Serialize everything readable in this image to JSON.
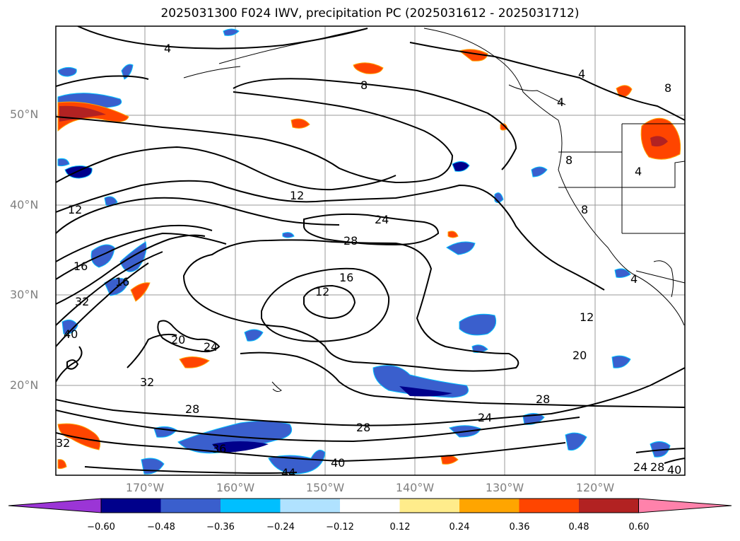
{
  "title": "2025031300 F024 IWV, precipitation PC (2025031612 - 2025031712)",
  "lat_labels": [
    "50°N",
    "40°N",
    "30°N",
    "20°N"
  ],
  "lon_labels": [
    "170°W",
    "160°W",
    "150°W",
    "140°W",
    "130°W",
    "120°W"
  ],
  "colorbar": {
    "colors": [
      "#9b35d6",
      "#00008b",
      "#3a5fcd",
      "#00bfff",
      "#b0e2ff",
      "#ffffff",
      "#ffec8b",
      "#ffa500",
      "#ff4500",
      "#b22222",
      "#ff82ab"
    ],
    "ticks": [
      "−0.60",
      "−0.48",
      "−0.36",
      "−0.24",
      "−0.12",
      "0.12",
      "0.24",
      "0.36",
      "0.48",
      "0.60"
    ]
  },
  "contour_labels": [
    "4",
    "8",
    "4",
    "4",
    "8",
    "4",
    "8",
    "12",
    "12",
    "24",
    "28",
    "16",
    "12",
    "16",
    "16",
    "32",
    "40",
    "20",
    "24",
    "32",
    "28",
    "36",
    "44",
    "40",
    "28",
    "24",
    "20",
    "12",
    "28",
    "32",
    "24",
    "28",
    "40",
    "8",
    "4"
  ]
}
